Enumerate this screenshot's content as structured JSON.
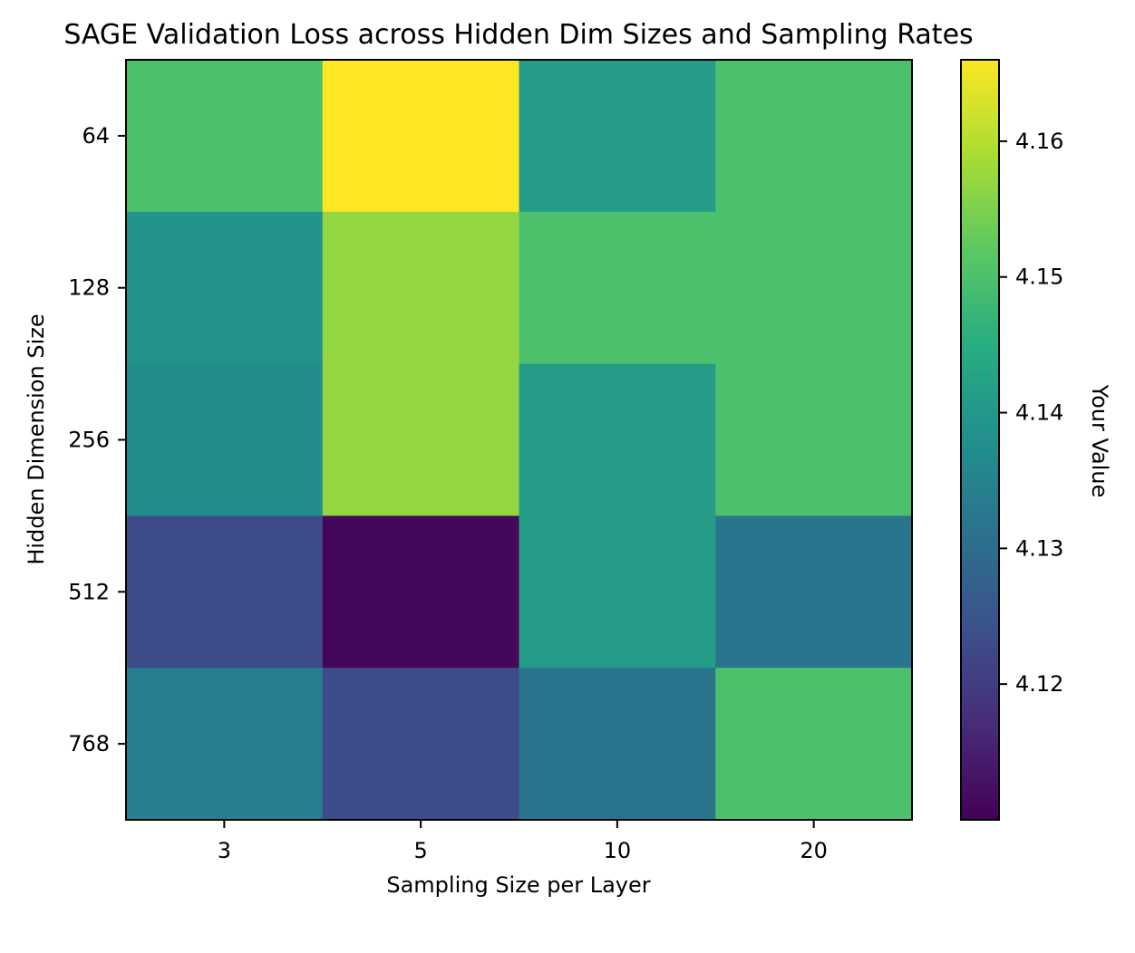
{
  "chart_data": {
    "type": "heatmap",
    "title": "SAGE Validation Loss across Hidden Dim Sizes and Sampling Rates",
    "xlabel": "Sampling Size per Layer",
    "ylabel": "Hidden Dimension Size",
    "colorbar_label": "Your Value",
    "x_categories": [
      "3",
      "5",
      "10",
      "20"
    ],
    "y_categories": [
      "64",
      "128",
      "256",
      "512",
      "768"
    ],
    "values": [
      [
        4.15,
        4.166,
        4.141,
        4.15
      ],
      [
        4.139,
        4.157,
        4.15,
        4.15
      ],
      [
        4.137,
        4.157,
        4.141,
        4.15
      ],
      [
        4.123,
        4.111,
        4.141,
        4.132
      ],
      [
        4.134,
        4.123,
        4.132,
        4.15
      ]
    ],
    "colorbar_range": [
      4.11,
      4.166
    ],
    "colorbar_ticks": [
      "4.12",
      "4.13",
      "4.14",
      "4.15",
      "4.16"
    ],
    "colorbar_tick_values": [
      4.12,
      4.13,
      4.14,
      4.15,
      4.16
    ],
    "colormap": "viridis",
    "grid": false
  }
}
